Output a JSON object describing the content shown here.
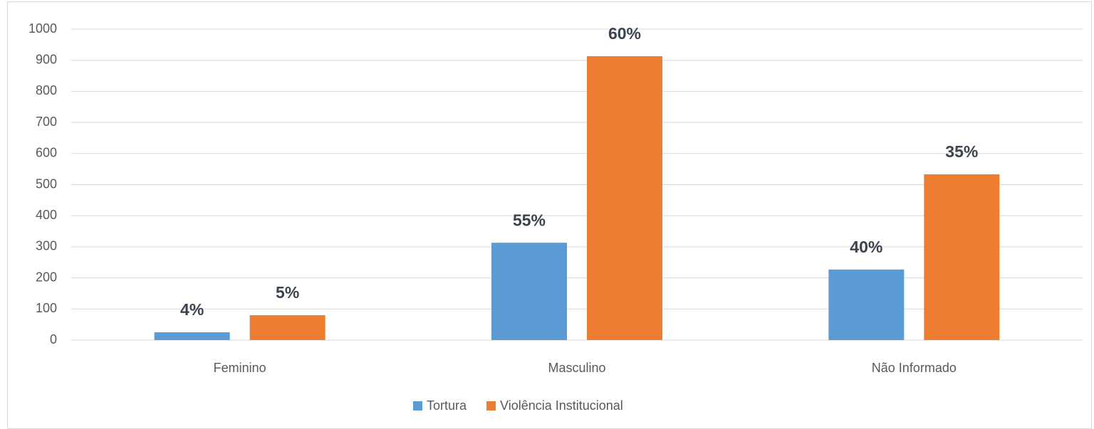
{
  "chart_data": {
    "type": "bar",
    "categories": [
      "Feminino",
      "Masculino",
      "Não Informado"
    ],
    "series": [
      {
        "name": "Tortura",
        "color": "#5b9bd5",
        "values": [
          25,
          313,
          227
        ],
        "value_labels": [
          "4%",
          "55%",
          "40%"
        ]
      },
      {
        "name": "Violência Institucional",
        "color": "#ed7d31",
        "values": [
          80,
          913,
          533
        ],
        "value_labels": [
          "5%",
          "60%",
          "35%"
        ]
      }
    ],
    "ylim": [
      0,
      1000
    ],
    "yticks": [
      0,
      100,
      200,
      300,
      400,
      500,
      600,
      700,
      800,
      900,
      1000
    ],
    "grid": true,
    "legend": "bottom"
  }
}
